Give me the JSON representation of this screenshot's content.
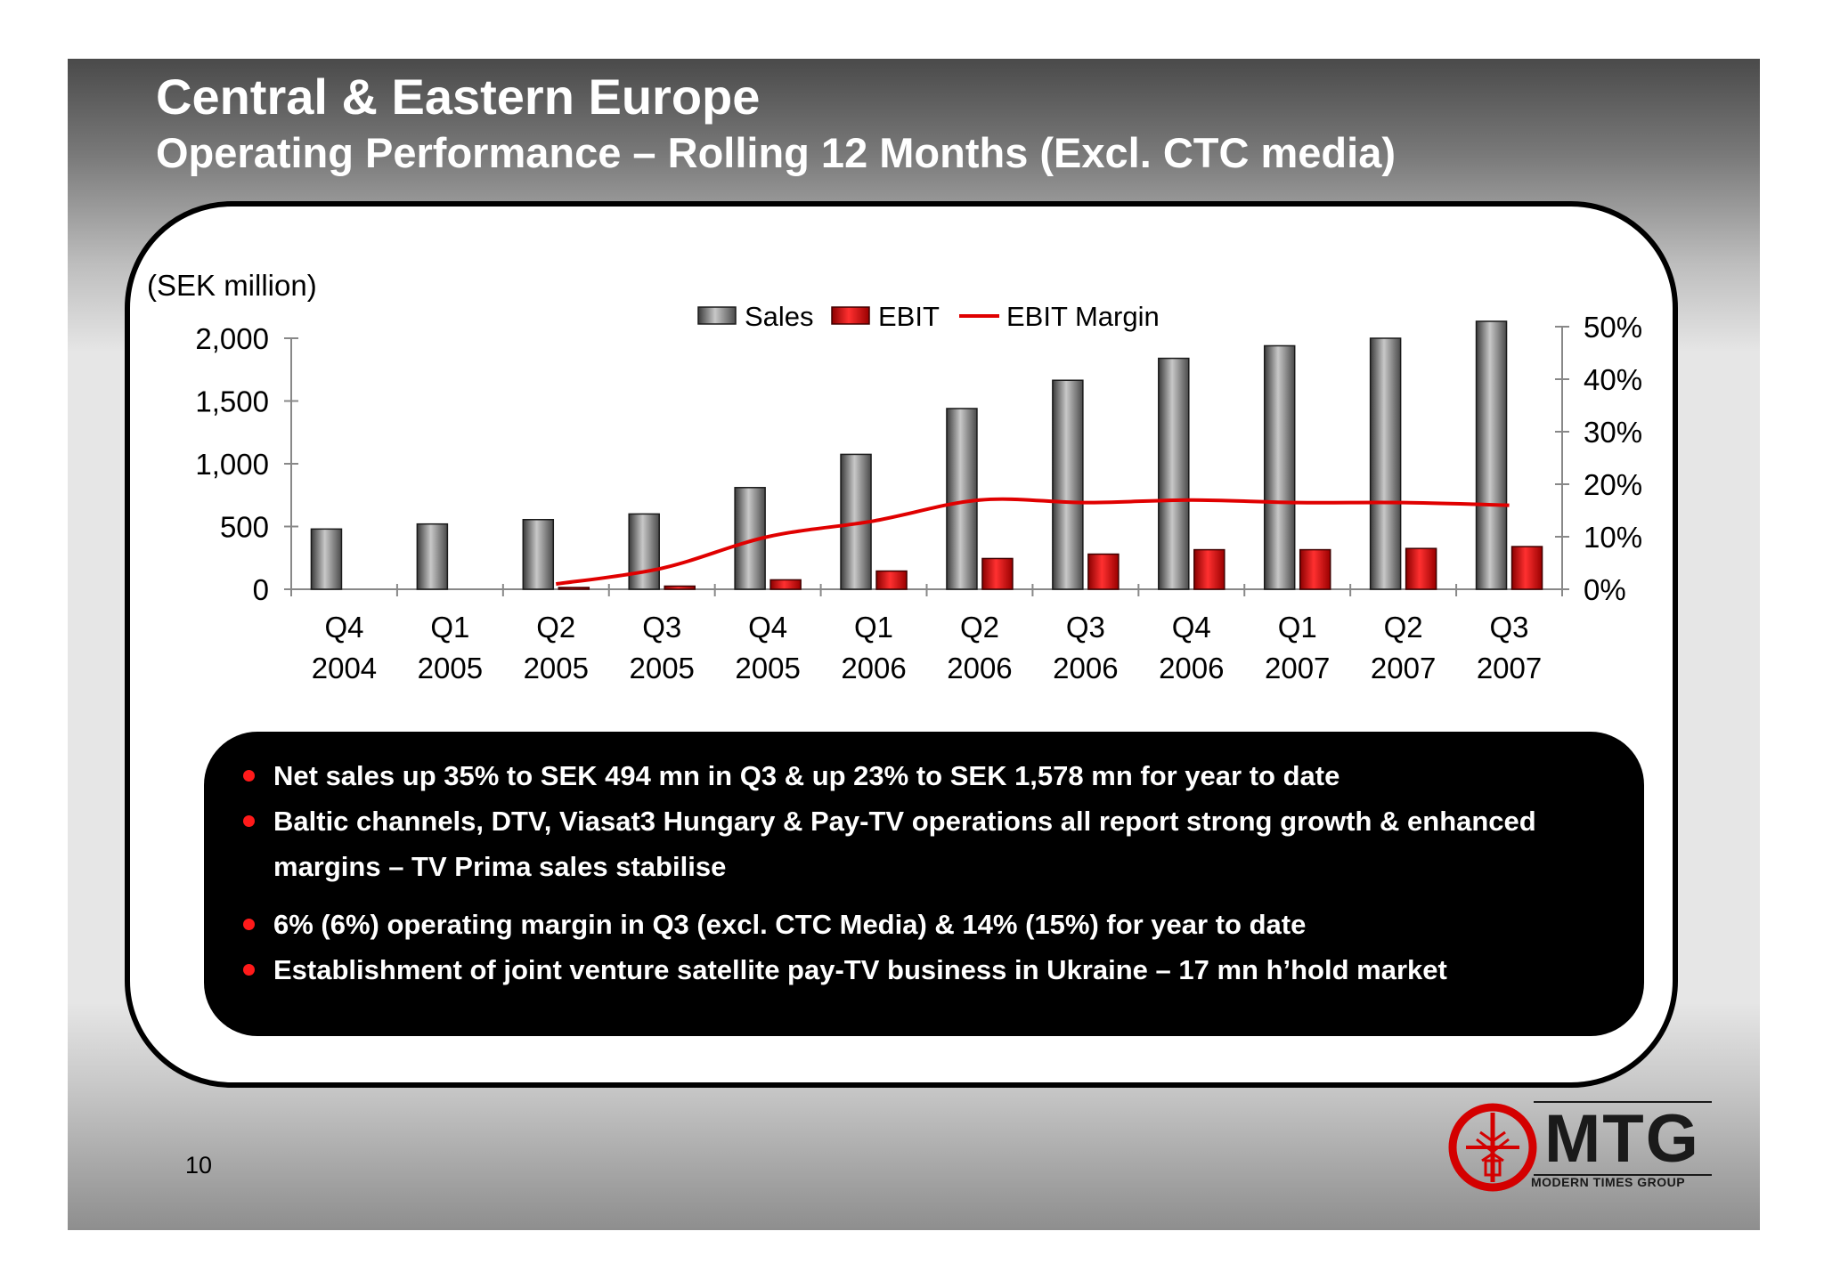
{
  "header": {
    "title": "Central & Eastern Europe",
    "subtitle": "Operating Performance – Rolling 12 Months (Excl. CTC media)"
  },
  "chart_data": {
    "type": "bar",
    "unit_label": "(SEK million)",
    "categories": [
      [
        "Q4",
        "2004"
      ],
      [
        "Q1",
        "2005"
      ],
      [
        "Q2",
        "2005"
      ],
      [
        "Q3",
        "2005"
      ],
      [
        "Q4",
        "2005"
      ],
      [
        "Q1",
        "2006"
      ],
      [
        "Q2",
        "2006"
      ],
      [
        "Q3",
        "2006"
      ],
      [
        "Q4",
        "2006"
      ],
      [
        "Q1",
        "2007"
      ],
      [
        "Q2",
        "2007"
      ],
      [
        "Q3",
        "2007"
      ]
    ],
    "series": [
      {
        "name": "Sales",
        "type": "bar",
        "axis": "left",
        "color": "#7f7f7f",
        "values": [
          480,
          520,
          555,
          600,
          810,
          1075,
          1440,
          1665,
          1840,
          1940,
          2000,
          2135
        ]
      },
      {
        "name": "EBIT",
        "type": "bar",
        "axis": "left",
        "color": "#e00000",
        "values": [
          0,
          0,
          12,
          25,
          75,
          145,
          245,
          280,
          315,
          315,
          325,
          340
        ]
      },
      {
        "name": "EBIT Margin",
        "type": "line",
        "axis": "right",
        "color": "#e00000",
        "values": [
          null,
          null,
          1,
          4,
          10,
          13,
          17,
          16.5,
          17,
          16.5,
          16.5,
          16
        ]
      }
    ],
    "y_left": {
      "min": 0,
      "max": 2000,
      "ticks": [
        0,
        500,
        1000,
        1500,
        2000
      ],
      "tick_labels": [
        "0",
        "500",
        "1,000",
        "1,500",
        "2,000"
      ]
    },
    "y_right": {
      "min": 0,
      "max": 50,
      "ticks": [
        0,
        10,
        20,
        30,
        40,
        50
      ],
      "tick_labels": [
        "0%",
        "10%",
        "20%",
        "30%",
        "40%",
        "50%"
      ]
    },
    "legend": {
      "position": "top-center"
    },
    "grid": false
  },
  "notes": [
    "Net sales up 35% to SEK 494 mn in Q3 & up 23% to SEK 1,578 mn for year to date",
    "Baltic channels, DTV, Viasat3 Hungary & Pay-TV operations all report strong growth & enhanced margins – TV Prima sales stabilise",
    "6% (6%) operating margin in Q3 (excl. CTC Media) & 14% (15%) for year to date",
    "Establishment of joint venture satellite pay-TV business in Ukraine – 17 mn h’hold market"
  ],
  "footer": {
    "page_number": "10",
    "logo_word": "MTG",
    "logo_tagline": "MODERN TIMES GROUP"
  }
}
